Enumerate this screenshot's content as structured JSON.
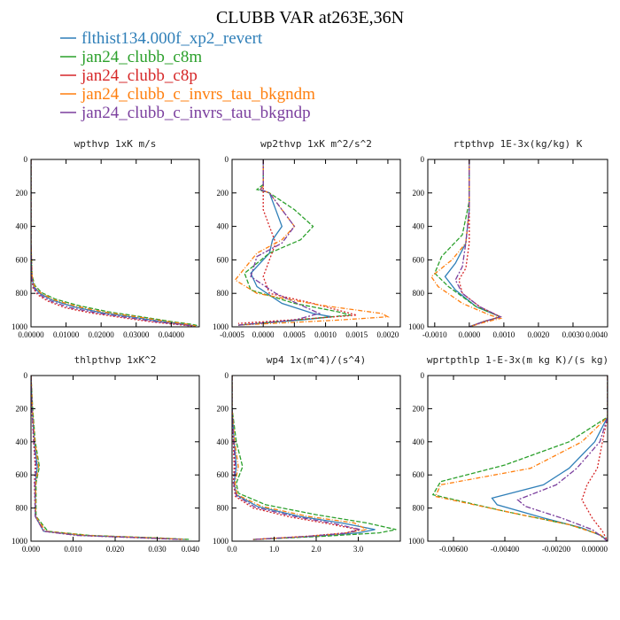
{
  "figure": {
    "title": "CLUBB VAR at263E,36N",
    "legend": [
      {
        "label": "flthist134.000f_xp2_revert",
        "color": "#2f7fb8"
      },
      {
        "label": "jan24_clubb_c8m",
        "color": "#2ca02c"
      },
      {
        "label": "jan24_clubb_c8p",
        "color": "#d62728"
      },
      {
        "label": "jan24_clubb_c_invrs_tau_bkgndm",
        "color": "#ff7f0e"
      },
      {
        "label": "jan24_clubb_c_invrs_tau_bkgndp",
        "color": "#7b3f9e"
      }
    ]
  },
  "chart_data": [
    {
      "type": "line",
      "title": "wpthvp  1xK m/s",
      "xlim": [
        0,
        0.048
      ],
      "ylim": [
        1000,
        0
      ],
      "y_inverted": true,
      "xticks": [
        0,
        0.01,
        0.02,
        0.03,
        0.04
      ],
      "xtick_labels": [
        "0.00000",
        "0.01000",
        "0.02000",
        "0.03000",
        "0.04000"
      ],
      "yticks": [
        0,
        200,
        400,
        600,
        800,
        1000
      ],
      "ytick_labels": [
        "0",
        "200",
        "400",
        "600",
        "800",
        "1000"
      ],
      "series": [
        {
          "x": [
            0,
            0,
            0.0002,
            0.0008,
            0.0025,
            0.006,
            0.012,
            0.02,
            0.03,
            0.038,
            0.044,
            0.047
          ],
          "y": [
            0,
            500,
            700,
            760,
            800,
            840,
            880,
            915,
            945,
            970,
            985,
            995
          ]
        },
        {
          "x": [
            0,
            0,
            0.0003,
            0.001,
            0.003,
            0.007,
            0.014,
            0.022,
            0.032,
            0.04,
            0.046,
            0.048
          ],
          "y": [
            0,
            500,
            690,
            750,
            795,
            835,
            875,
            910,
            942,
            968,
            985,
            995
          ]
        },
        {
          "x": [
            0,
            0,
            0.0002,
            0.0006,
            0.002,
            0.005,
            0.01,
            0.018,
            0.027,
            0.035,
            0.042,
            0.046
          ],
          "y": [
            0,
            500,
            710,
            770,
            810,
            848,
            888,
            920,
            948,
            972,
            987,
            995
          ]
        },
        {
          "x": [
            0,
            0,
            0.0003,
            0.0009,
            0.0028,
            0.0065,
            0.013,
            0.021,
            0.031,
            0.039,
            0.045,
            0.047
          ],
          "y": [
            0,
            500,
            695,
            755,
            798,
            838,
            878,
            912,
            943,
            969,
            985,
            995
          ]
        },
        {
          "x": [
            0,
            0,
            0.0002,
            0.0007,
            0.0022,
            0.0055,
            0.011,
            0.019,
            0.028,
            0.036,
            0.043,
            0.046
          ],
          "y": [
            0,
            500,
            705,
            765,
            805,
            845,
            885,
            918,
            946,
            971,
            986,
            995
          ]
        }
      ]
    },
    {
      "type": "line",
      "title": "wp2thvp  1xK m^2/s^2",
      "xlim": [
        -0.0005,
        0.0022
      ],
      "ylim": [
        1000,
        0
      ],
      "y_inverted": true,
      "xticks": [
        -0.0005,
        0,
        0.0005,
        0.001,
        0.0015,
        0.002
      ],
      "xtick_labels": [
        "-0.0005",
        "0.0000",
        "0.0005",
        "0.0010",
        "0.0015",
        "0.0020"
      ],
      "yticks": [
        0,
        200,
        400,
        600,
        800,
        1000
      ],
      "ytick_labels": [
        "0",
        "200",
        "400",
        "600",
        "800",
        "1000"
      ],
      "series": [
        {
          "x": [
            0,
            0,
            -5e-05,
            0.0001,
            0.0002,
            0.0003,
            0.00015,
            0.0001,
            -0.0002,
            -0.0001,
            0.0003,
            0.0008,
            0.0011,
            0.0006,
            -0.0004
          ],
          "y": [
            0,
            160,
            180,
            200,
            300,
            400,
            480,
            560,
            680,
            760,
            860,
            920,
            940,
            960,
            990
          ]
        },
        {
          "x": [
            0,
            0,
            -0.0001,
            0.0001,
            0.0005,
            0.0008,
            0.0006,
            0.0001,
            -0.0003,
            -0.0002,
            0.0005,
            0.0012,
            0.0014,
            0.0008,
            -0.0004
          ],
          "y": [
            0,
            150,
            180,
            200,
            300,
            400,
            480,
            560,
            680,
            780,
            860,
            910,
            930,
            950,
            990
          ]
        },
        {
          "x": [
            0,
            0,
            0,
            0,
            0.0001,
            0.0002,
            0.0001,
            0,
            0.0001,
            0.0008,
            0.0012,
            0.0015,
            0.0008,
            -0.0004
          ],
          "y": [
            0,
            160,
            200,
            300,
            400,
            500,
            600,
            700,
            800,
            860,
            900,
            930,
            950,
            980
          ]
        },
        {
          "x": [
            0,
            0,
            -5e-05,
            0.0001,
            0.0003,
            0.0005,
            0.0003,
            -0.0001,
            -0.00045,
            -0.0001,
            0.0009,
            0.0019,
            0.002,
            0.0012,
            -0.0004
          ],
          "y": [
            0,
            160,
            180,
            200,
            300,
            400,
            480,
            560,
            720,
            800,
            870,
            920,
            940,
            960,
            990
          ]
        },
        {
          "x": [
            0,
            0,
            -5e-05,
            0.0001,
            0.0003,
            0.0005,
            0.0003,
            -0.0001,
            -0.0002,
            0.0002,
            0.0006,
            0.0009,
            0.0005,
            -0.0004
          ],
          "y": [
            0,
            160,
            180,
            200,
            300,
            400,
            500,
            580,
            700,
            800,
            870,
            920,
            960,
            990
          ]
        }
      ]
    },
    {
      "type": "line",
      "title": "rtpthvp  1E-3x(kg/kg) K",
      "xlim": [
        -0.0012,
        0.004
      ],
      "ylim": [
        1000,
        0
      ],
      "y_inverted": true,
      "xticks": [
        -0.001,
        0,
        0.001,
        0.002,
        0.003,
        0.004
      ],
      "xtick_labels": [
        "-0.0010",
        "0.0000",
        "0.0010",
        "0.0020",
        "0.0030",
        "0.0040"
      ],
      "yticks": [
        0,
        200,
        400,
        600,
        800,
        1000
      ],
      "ytick_labels": [
        "0",
        "200",
        "400",
        "600",
        "800",
        "1000"
      ],
      "series": [
        {
          "x": [
            0,
            0,
            -0.0001,
            -0.0004,
            -0.0007,
            -0.0004,
            0.0002,
            0.0009,
            0.0004,
            0
          ],
          "y": [
            0,
            300,
            500,
            620,
            700,
            780,
            880,
            940,
            970,
            1000
          ]
        },
        {
          "x": [
            0,
            0,
            -0.0002,
            -0.0008,
            -0.001,
            -0.0006,
            0.0002,
            0.0009,
            0.0004,
            0
          ],
          "y": [
            0,
            250,
            450,
            580,
            680,
            760,
            880,
            940,
            970,
            1000
          ]
        },
        {
          "x": [
            0,
            0,
            0,
            -0.0001,
            -0.0003,
            -0.0002,
            0.0003,
            0.0009,
            0.0004,
            0
          ],
          "y": [
            0,
            300,
            500,
            650,
            720,
            800,
            880,
            940,
            970,
            1000
          ]
        },
        {
          "x": [
            0,
            0,
            -0.0001,
            -0.0005,
            -0.0011,
            -0.0009,
            -0.0002,
            0.0006,
            0.0009,
            0.0004,
            0
          ],
          "y": [
            0,
            300,
            500,
            600,
            700,
            760,
            860,
            930,
            950,
            975,
            1000
          ]
        },
        {
          "x": [
            0,
            0,
            -0.0001,
            -0.0002,
            -0.0004,
            -0.0002,
            0.0003,
            0.0009,
            0.0004,
            0
          ],
          "y": [
            0,
            300,
            500,
            640,
            720,
            800,
            880,
            940,
            970,
            1000
          ]
        }
      ]
    },
    {
      "type": "line",
      "title": "thlpthvp  1xK^2",
      "xlim": [
        0,
        0.04
      ],
      "ylim": [
        1000,
        0
      ],
      "y_inverted": true,
      "xticks": [
        0,
        0.01,
        0.02,
        0.03,
        0.04
      ],
      "xtick_labels": [
        "0.000",
        "0.010",
        "0.020",
        "0.030",
        "0.040"
      ],
      "yticks": [
        0,
        200,
        400,
        600,
        800,
        1000
      ],
      "ytick_labels": [
        "0",
        "200",
        "400",
        "600",
        "800",
        "1000"
      ],
      "series": [
        {
          "x": [
            0,
            0.0003,
            0.0008,
            0.0015,
            0.001,
            0.001,
            0.003,
            0.012,
            0.028,
            0.037
          ],
          "y": [
            0,
            200,
            400,
            550,
            650,
            850,
            940,
            965,
            980,
            990
          ]
        },
        {
          "x": [
            0,
            0.0004,
            0.001,
            0.002,
            0.0012,
            0.0012,
            0.004,
            0.014,
            0.03,
            0.038
          ],
          "y": [
            0,
            200,
            400,
            550,
            650,
            850,
            940,
            965,
            980,
            990
          ]
        },
        {
          "x": [
            0,
            0.0002,
            0.0006,
            0.001,
            0.0008,
            0.001,
            0.003,
            0.011,
            0.026,
            0.036
          ],
          "y": [
            0,
            200,
            400,
            550,
            650,
            850,
            940,
            965,
            980,
            990
          ]
        },
        {
          "x": [
            0,
            0.0003,
            0.0009,
            0.0018,
            0.0011,
            0.0011,
            0.0035,
            0.013,
            0.029,
            0.037
          ],
          "y": [
            0,
            200,
            400,
            550,
            650,
            850,
            940,
            965,
            980,
            990
          ]
        },
        {
          "x": [
            0,
            0.0002,
            0.0007,
            0.0012,
            0.0009,
            0.001,
            0.003,
            0.011,
            0.027,
            0.036
          ],
          "y": [
            0,
            200,
            400,
            550,
            650,
            850,
            940,
            965,
            980,
            990
          ]
        }
      ]
    },
    {
      "type": "line",
      "title": "wp4  1x(m^4)/(s^4)",
      "xlim": [
        0,
        4
      ],
      "ylim": [
        1000,
        0
      ],
      "y_inverted": true,
      "xticks": [
        0,
        1,
        2,
        3
      ],
      "xtick_labels": [
        "0.0",
        "1.0",
        "2.0",
        "3.0"
      ],
      "yticks": [
        0,
        200,
        400,
        600,
        800,
        1000
      ],
      "ytick_labels": [
        "0",
        "200",
        "400",
        "600",
        "800",
        "1000"
      ],
      "series": [
        {
          "x": [
            0,
            0,
            0.05,
            0.1,
            0.05,
            0.1,
            0.6,
            1.6,
            2.6,
            3.4,
            3.0,
            2.0,
            0.5
          ],
          "y": [
            0,
            200,
            400,
            550,
            650,
            720,
            790,
            850,
            890,
            930,
            950,
            970,
            990
          ]
        },
        {
          "x": [
            0,
            0,
            0.1,
            0.25,
            0.1,
            0.15,
            0.8,
            2.0,
            3.2,
            3.9,
            3.5,
            2.2,
            0.5
          ],
          "y": [
            0,
            200,
            400,
            550,
            650,
            710,
            780,
            840,
            890,
            930,
            950,
            970,
            990
          ]
        },
        {
          "x": [
            0,
            0,
            0.03,
            0.05,
            0.03,
            0.08,
            0.5,
            1.4,
            2.3,
            3.0,
            2.7,
            1.8,
            0.5
          ],
          "y": [
            0,
            200,
            400,
            550,
            650,
            730,
            800,
            855,
            895,
            930,
            950,
            970,
            990
          ]
        },
        {
          "x": [
            0,
            0,
            0.06,
            0.15,
            0.07,
            0.12,
            0.7,
            1.8,
            2.9,
            3.2,
            2.6,
            1.7,
            0.5
          ],
          "y": [
            0,
            200,
            400,
            550,
            650,
            720,
            790,
            850,
            890,
            930,
            955,
            972,
            990
          ]
        },
        {
          "x": [
            0,
            0,
            0.04,
            0.08,
            0.04,
            0.1,
            0.55,
            1.5,
            2.4,
            3.05,
            2.7,
            1.8,
            0.5
          ],
          "y": [
            0,
            200,
            400,
            550,
            650,
            725,
            795,
            852,
            892,
            930,
            952,
            971,
            990
          ]
        }
      ]
    },
    {
      "type": "line",
      "title": "wprtpthlp  1-E-3x(m kg K)/(s kg)",
      "xlim": [
        -0.007,
        0
      ],
      "ylim": [
        1000,
        0
      ],
      "y_inverted": true,
      "xticks": [
        -0.006,
        -0.004,
        -0.002,
        0
      ],
      "xtick_labels": [
        "-0.00600",
        "-0.00400",
        "-0.00200",
        "0.00000"
      ],
      "yticks": [
        0,
        200,
        400,
        600,
        800,
        1000
      ],
      "ytick_labels": [
        "0",
        "200",
        "400",
        "600",
        "800",
        "1000"
      ],
      "series": [
        {
          "x": [
            0,
            0,
            -0.0005,
            -0.0015,
            -0.0025,
            -0.0045,
            -0.0043,
            -0.0025,
            -0.001,
            -0.0002,
            0
          ],
          "y": [
            0,
            250,
            400,
            560,
            660,
            740,
            780,
            860,
            920,
            970,
            1000
          ]
        },
        {
          "x": [
            0,
            0,
            -0.0015,
            -0.004,
            -0.0065,
            -0.0068,
            -0.004,
            -0.0015,
            -0.0003,
            0
          ],
          "y": [
            0,
            250,
            400,
            540,
            640,
            720,
            820,
            900,
            960,
            1000
          ]
        },
        {
          "x": [
            0,
            0,
            -0.0002,
            -0.0004,
            -0.0008,
            -0.001,
            -0.0006,
            -0.0002,
            0
          ],
          "y": [
            0,
            250,
            400,
            560,
            660,
            750,
            860,
            940,
            1000
          ]
        },
        {
          "x": [
            0,
            0,
            -0.001,
            -0.003,
            -0.0065,
            -0.0067,
            -0.004,
            -0.0015,
            -0.0003,
            0
          ],
          "y": [
            0,
            250,
            400,
            560,
            660,
            730,
            820,
            900,
            960,
            1000
          ]
        },
        {
          "x": [
            0,
            0,
            -0.0003,
            -0.0012,
            -0.002,
            -0.0035,
            -0.0032,
            -0.0018,
            -0.0006,
            0
          ],
          "y": [
            0,
            250,
            400,
            560,
            660,
            750,
            790,
            860,
            930,
            1000
          ]
        }
      ]
    }
  ]
}
